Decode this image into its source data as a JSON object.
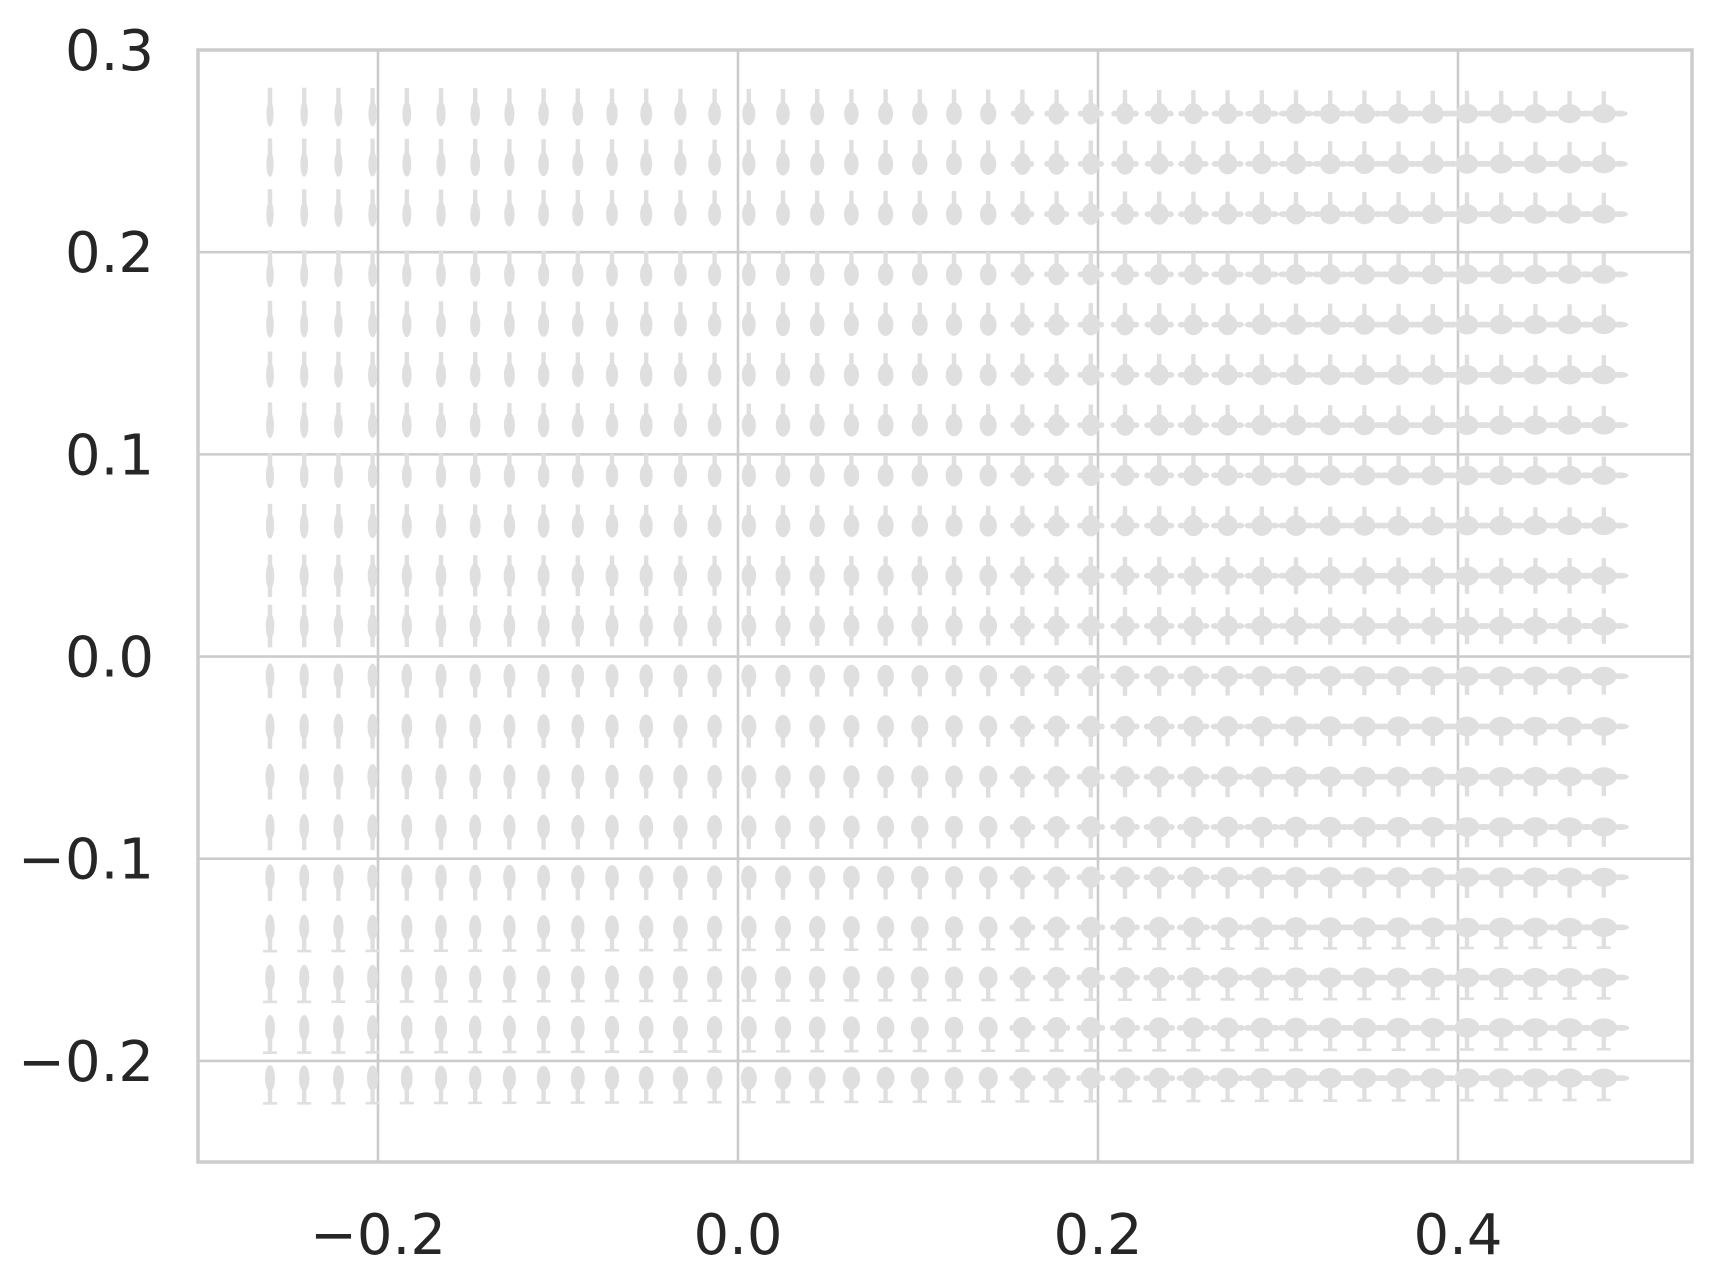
{
  "chart_data": {
    "type": "scatter",
    "title": "",
    "xlabel": "",
    "ylabel": "",
    "xlim": [
      -0.3,
      0.53
    ],
    "ylim": [
      -0.25,
      0.3
    ],
    "grid": true,
    "x_ticks": [
      -0.2,
      0.0,
      0.2,
      0.4
    ],
    "x_tick_labels": [
      "−0.2",
      "0.0",
      "0.2",
      "0.4"
    ],
    "y_ticks": [
      -0.2,
      -0.1,
      0.0,
      0.1,
      0.2,
      0.3
    ],
    "y_tick_labels": [
      "−0.2",
      "−0.1",
      "0.0",
      "0.1",
      "0.2",
      "0.3"
    ],
    "marker_grid": {
      "x_start": -0.26,
      "x_step": 0.019,
      "x_count": 40,
      "y_values": [
        0.27,
        0.245,
        0.22,
        0.19,
        0.165,
        0.14,
        0.115,
        0.09,
        0.065,
        0.04,
        0.015,
        -0.01,
        -0.035,
        -0.06,
        -0.085,
        -0.11,
        -0.135,
        -0.16,
        -0.185,
        -0.21
      ],
      "marker": "leaf glyph (shape varies smoothly with position)"
    },
    "colors": {
      "marker": "#dfdfdf",
      "grid": "#cccccc",
      "text": "#262626",
      "background": "#ffffff"
    }
  }
}
